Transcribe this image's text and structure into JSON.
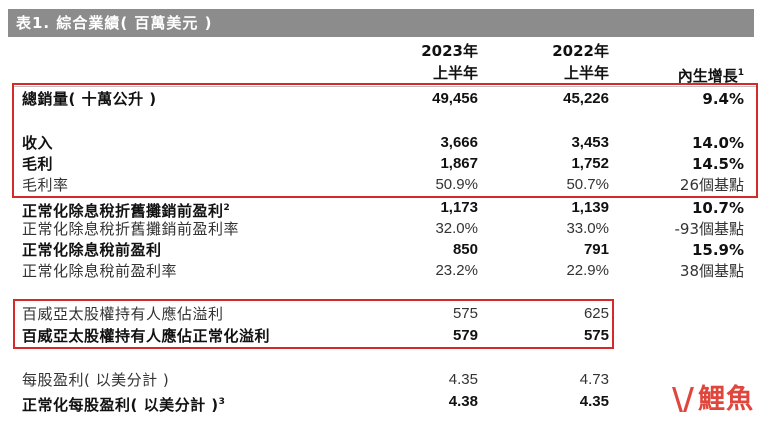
{
  "table": {
    "title": "表1. 綜合業績( 百萬美元 )",
    "columns": {
      "c2023_year": "2023年",
      "c2023_half": "上半年",
      "c2022_year": "2022年",
      "c2022_half": "上半年",
      "growth": "內生增長",
      "growth_note": "1"
    },
    "rows": [
      {
        "label": "總銷量( 十萬公升 )",
        "note": "",
        "v2023": "49,456",
        "v2022": "45,226",
        "growth": "9.4%"
      },
      {
        "label": "收入",
        "note": "",
        "v2023": "3,666",
        "v2022": "3,453",
        "growth": "14.0%"
      },
      {
        "label": "毛利",
        "note": "",
        "v2023": "1,867",
        "v2022": "1,752",
        "growth": "14.5%"
      },
      {
        "label": "毛利率",
        "note": "",
        "v2023": "50.9%",
        "v2022": "50.7%",
        "growth": "26個基點"
      },
      {
        "label": "正常化除息稅折舊攤銷前盈利",
        "note": "2",
        "v2023": "1,173",
        "v2022": "1,139",
        "growth": "10.7%"
      },
      {
        "label": "正常化除息稅折舊攤銷前盈利率",
        "note": "",
        "v2023": "32.0%",
        "v2022": "33.0%",
        "growth": "-93個基點"
      },
      {
        "label": "正常化除息稅前盈利",
        "note": "",
        "v2023": "850",
        "v2022": "791",
        "growth": "15.9%"
      },
      {
        "label": "正常化除息稅前盈利率",
        "note": "",
        "v2023": "23.2%",
        "v2022": "22.9%",
        "growth": "38個基點"
      },
      {
        "label": "百威亞太股權持有人應佔溢利",
        "note": "",
        "v2023": "575",
        "v2022": "625",
        "growth": ""
      },
      {
        "label": "百威亞太股權持有人應佔正常化溢利",
        "note": "",
        "v2023": "579",
        "v2022": "575",
        "growth": ""
      },
      {
        "label": "每股盈利( 以美分計 )",
        "note": "",
        "v2023": "4.35",
        "v2022": "4.73",
        "growth": ""
      },
      {
        "label": "正常化每股盈利( 以美分計 )",
        "note": "3",
        "v2023": "4.38",
        "v2022": "4.35",
        "growth": ""
      }
    ]
  },
  "watermark": {
    "mark": "\\/",
    "text": "鯉魚"
  },
  "colors": {
    "title_bg": "#8c8c8c",
    "highlight_box": "#d42a2a"
  }
}
